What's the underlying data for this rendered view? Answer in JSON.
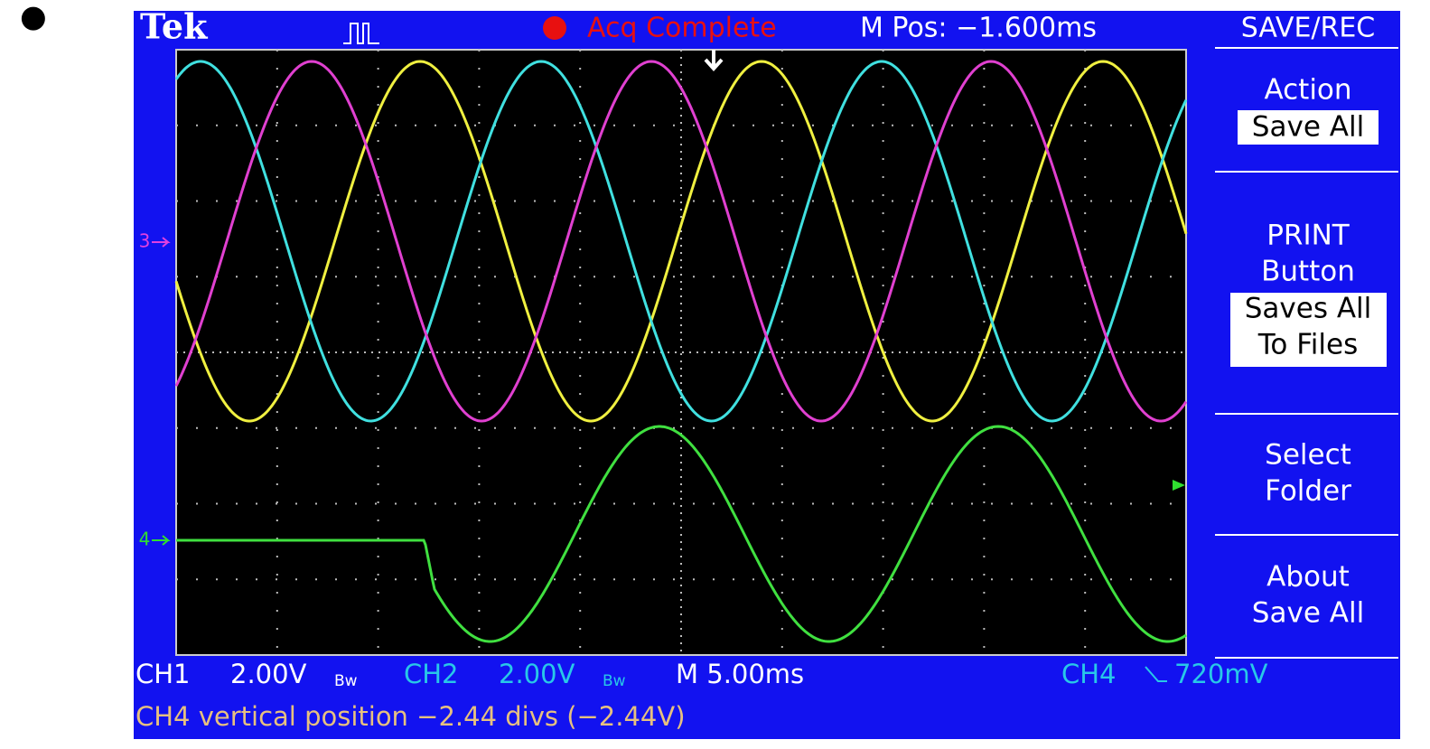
{
  "bullet": "●",
  "header": {
    "brand": "Tek",
    "status": "Acq Complete",
    "position": "M Pos: −1.600ms",
    "menu_title": "SAVE/REC"
  },
  "markers": {
    "ch3": "3",
    "ch4": "4"
  },
  "menu": [
    {
      "label": [
        "Action"
      ],
      "value": [
        "Save All"
      ]
    },
    {
      "label": [
        "PRINT",
        "Button"
      ],
      "value": [
        "Saves All",
        "To Files"
      ]
    },
    {
      "label": [
        "Select",
        "Folder"
      ]
    },
    {
      "label": [
        "About",
        "Save All"
      ]
    }
  ],
  "footer": {
    "ch1": "CH1",
    "ch1_scale": "2.00V",
    "ch1_bw": "Bw",
    "ch2": "CH2",
    "ch2_scale": "2.00V",
    "ch2_bw": "Bw",
    "timebase": "M 5.00ms",
    "trigger_source": "CH4",
    "trigger_level": "720mV",
    "message": "CH4 vertical position −2.44 divs (−2.44V)"
  }
}
